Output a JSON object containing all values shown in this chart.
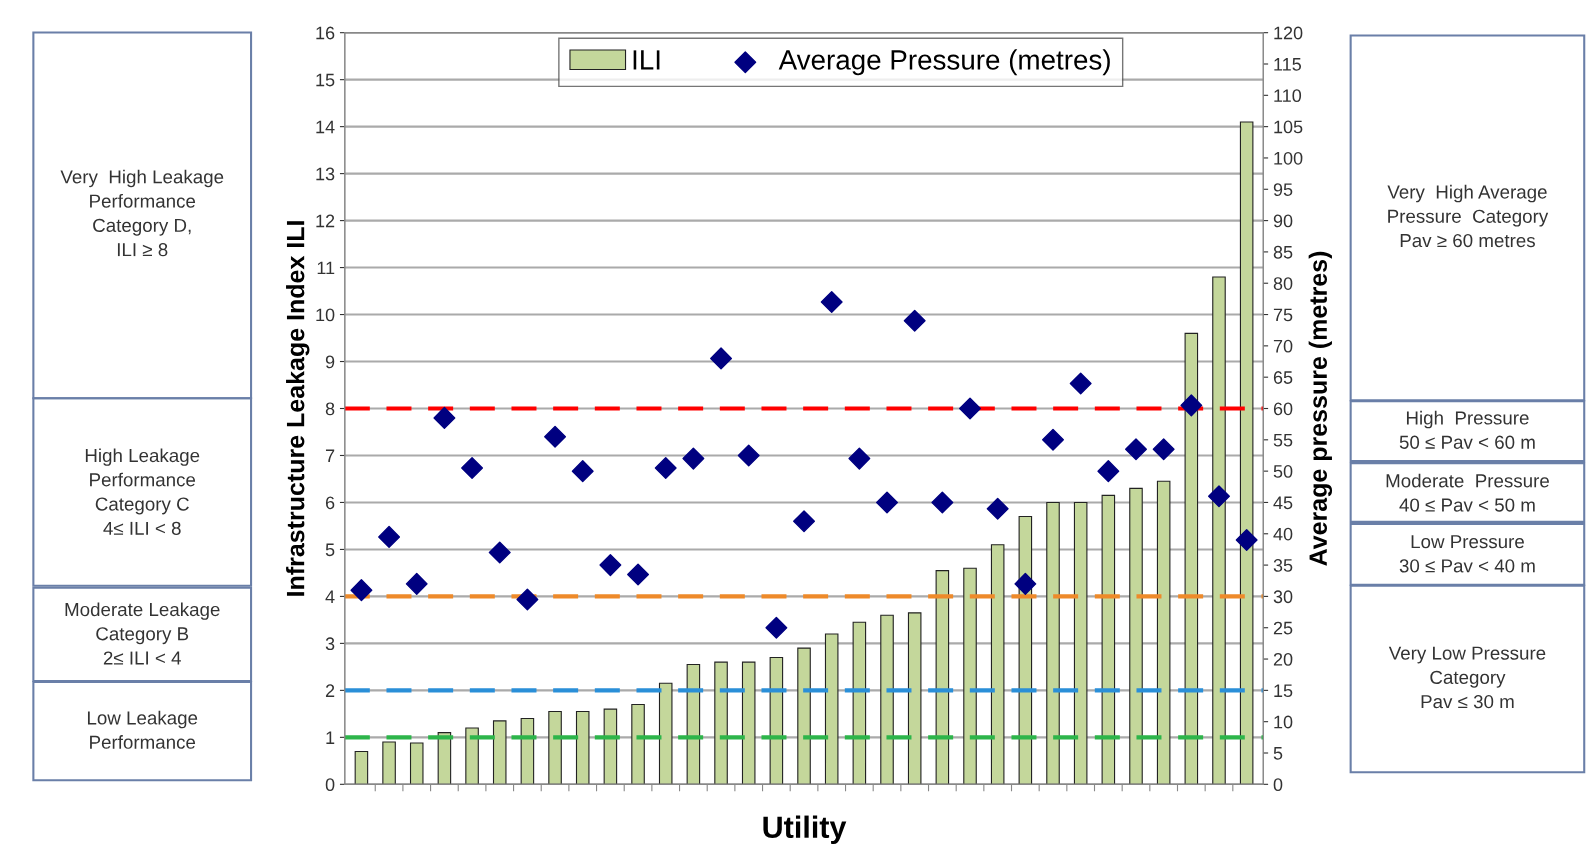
{
  "chart_data": {
    "type": "bar",
    "categories": [
      null,
      null,
      null,
      null,
      null,
      null,
      null,
      null,
      null,
      null,
      null,
      null,
      null,
      null,
      null,
      null,
      null,
      null,
      null,
      null,
      null,
      null,
      null,
      null,
      null,
      null,
      null,
      null,
      null,
      null,
      null,
      null,
      null
    ],
    "series": [
      {
        "name": "ILI",
        "color": "#c4d79b",
        "values": [
          0.7,
          0.9,
          0.88,
          1.1,
          1.2,
          1.35,
          1.4,
          1.55,
          1.55,
          1.6,
          1.7,
          2.15,
          2.55,
          2.6,
          2.6,
          2.7,
          2.9,
          3.2,
          3.45,
          3.6,
          3.65,
          4.55,
          4.6,
          5.1,
          5.7,
          6.0,
          6.0,
          6.15,
          6.3,
          6.45,
          9.6,
          10.8,
          14.1
        ]
      },
      {
        "name": "Average Pressure (metres)",
        "type": "scatter",
        "axis": "y2",
        "marker": "diamond",
        "color": "#000080",
        "values": [
          31,
          39.5,
          32,
          58.5,
          50.5,
          37,
          29.5,
          55.5,
          50,
          35,
          33.5,
          50.5,
          52,
          68,
          52.5,
          25,
          42,
          77,
          52,
          45,
          74,
          45,
          60,
          44,
          32,
          55,
          64,
          50,
          53.5,
          53.5,
          60.5,
          46,
          39
        ]
      }
    ],
    "xlabel": "Utility",
    "ylabel": "Infrastructure Leakage Index ILI",
    "y2label": "Average pressure (metres)",
    "ylim": [
      0,
      16
    ],
    "yticks": [
      0,
      1,
      2,
      3,
      4,
      5,
      6,
      7,
      8,
      9,
      10,
      11,
      12,
      13,
      14,
      15,
      16
    ],
    "y2lim": [
      0,
      120
    ],
    "y2ticks": [
      0,
      5,
      10,
      15,
      20,
      25,
      30,
      35,
      40,
      45,
      50,
      55,
      60,
      65,
      70,
      75,
      80,
      85,
      90,
      95,
      100,
      105,
      110,
      115,
      120
    ],
    "grid": "y",
    "legend": "top",
    "ref_lines": [
      {
        "axis": "y",
        "value": 8,
        "color": "#ff0000",
        "line_style": "dashed"
      },
      {
        "axis": "y",
        "value": 4,
        "color": "#ee8a2a",
        "line_style": "dashed"
      },
      {
        "axis": "y",
        "value": 2,
        "color": "#2a8fd8",
        "line_style": "dashed"
      },
      {
        "axis": "y",
        "value": 1,
        "color": "#2db54a",
        "line_style": "dashed"
      }
    ],
    "annotations": [
      "Very  High Leakage\nPerformance\nCategory D,\nILI ≥ 8",
      "High Leakage\nPerformance\nCategory C\n4≤ ILI < 8",
      "Moderate Leakage\nCategory B\n2≤ ILI < 4",
      "Low Leakage\nPerformance",
      "Very  High Average\nPressure  Category\nPav ≥ 60 metres",
      "High  Pressure\n50 ≤ Pav < 60 m",
      "Moderate  Pressure\n40 ≤ Pav < 50 m",
      "Low Pressure\n30 ≤ Pav < 40 m",
      "Very Low Pressure\nCategory\nPav ≤ 30 m"
    ]
  }
}
